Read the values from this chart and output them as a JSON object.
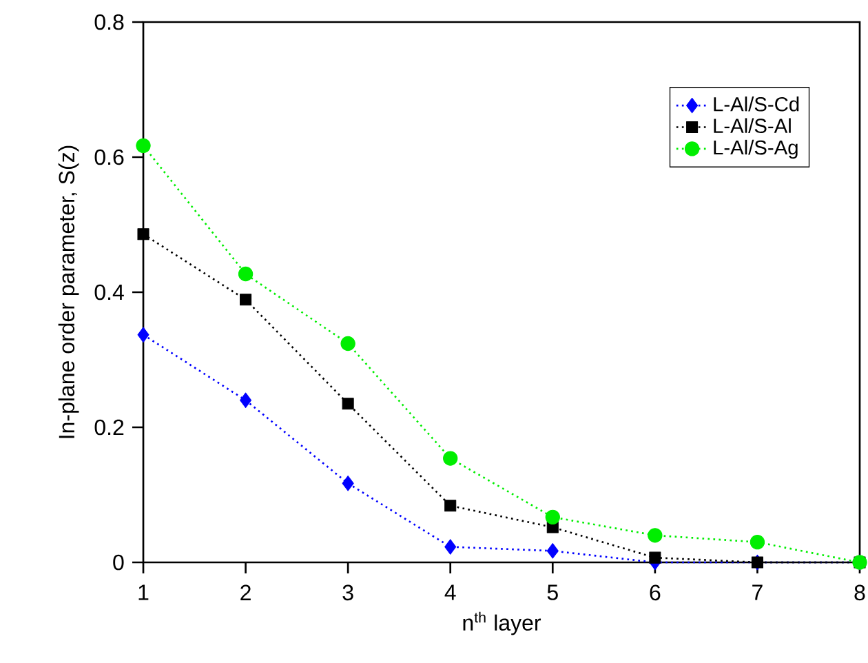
{
  "chart_data": {
    "type": "line",
    "xlabel": "n$^{th}$ layer",
    "ylabel": "In-plane order parameter, S(z)",
    "x": [
      1,
      2,
      3,
      4,
      5,
      6,
      7,
      8
    ],
    "series": [
      {
        "name": "L-Al/S-Cd",
        "color": "#0000ff",
        "marker": "diamond",
        "values": [
          0.337,
          0.24,
          0.117,
          0.023,
          0.017,
          0,
          0,
          0
        ]
      },
      {
        "name": "L-Al/S-Al",
        "color": "#000000",
        "marker": "square",
        "values": [
          0.486,
          0.389,
          0.235,
          0.084,
          0.052,
          0.007,
          0,
          0
        ]
      },
      {
        "name": "L-Al/S-Ag",
        "color": "#00ee00",
        "marker": "circle",
        "values": [
          0.617,
          0.427,
          0.324,
          0.154,
          0.067,
          0.04,
          0.03,
          0
        ]
      }
    ],
    "xlim": [
      1,
      8
    ],
    "xticks": [
      1,
      2,
      3,
      4,
      5,
      6,
      7,
      8
    ],
    "ylim": [
      0,
      0.8
    ],
    "yticks": [
      0,
      0.2,
      0.4,
      0.6,
      0.8
    ],
    "line_style": "dotted",
    "legend": "top right",
    "grid": false
  }
}
